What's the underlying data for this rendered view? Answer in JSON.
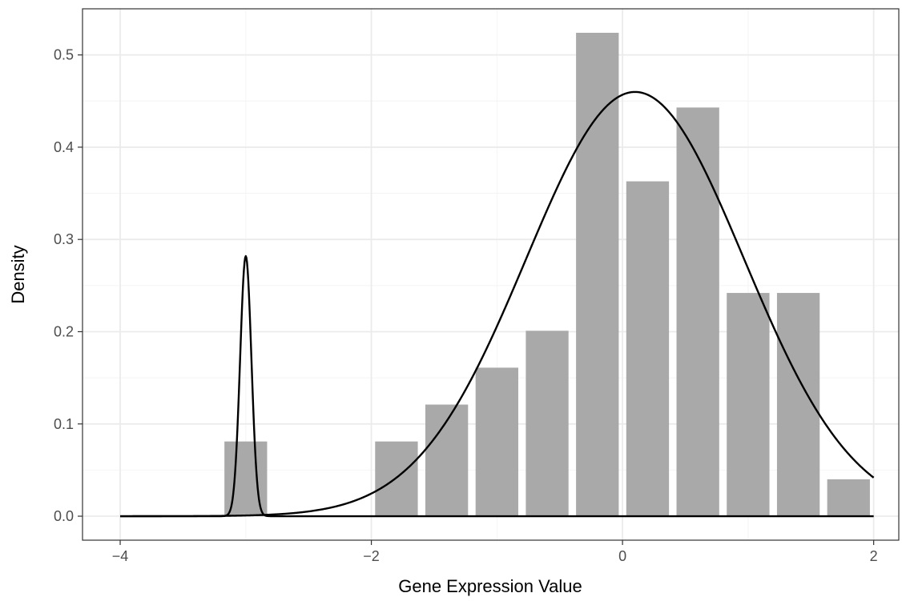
{
  "chart_data": {
    "type": "bar",
    "title": "",
    "xlabel": "Gene Expression Value",
    "ylabel": "Density",
    "xlim": [
      -4.3,
      2.2
    ],
    "ylim": [
      -0.026,
      0.55
    ],
    "grid": true,
    "legend": "none",
    "x_ticks": [
      -4,
      -2,
      0,
      2
    ],
    "x_tick_labels": [
      "−4",
      "−2",
      "0",
      "2"
    ],
    "y_ticks": [
      0.0,
      0.1,
      0.2,
      0.3,
      0.4,
      0.5
    ],
    "y_tick_labels": [
      "0.0",
      "0.1",
      "0.2",
      "0.3",
      "0.4",
      "0.5"
    ],
    "bin_width": 0.4,
    "bar_gap": 0.03,
    "bars": [
      {
        "x": -3.0,
        "value": 0.081
      },
      {
        "x": -1.8,
        "value": 0.081
      },
      {
        "x": -1.4,
        "value": 0.121
      },
      {
        "x": -1.0,
        "value": 0.161
      },
      {
        "x": -0.6,
        "value": 0.201
      },
      {
        "x": -0.2,
        "value": 0.524
      },
      {
        "x": 0.2,
        "value": 0.363
      },
      {
        "x": 0.6,
        "value": 0.443
      },
      {
        "x": 1.0,
        "value": 0.242
      },
      {
        "x": 1.4,
        "value": 0.242
      },
      {
        "x": 1.8,
        "value": 0.04
      }
    ],
    "curves": [
      {
        "name": "",
        "kind": "normal",
        "mean": 0.1,
        "sd": 0.8675,
        "weight": 1.0,
        "x_range": [
          -4,
          2
        ]
      },
      {
        "name": "",
        "kind": "normal",
        "mean": -3.0,
        "sd": 0.045,
        "weight": 0.0318,
        "x_range": [
          -4,
          2
        ]
      }
    ],
    "colors": {
      "bar": "#a9a9a9",
      "curve": "#000000",
      "grid_major": "#ebebeb",
      "grid_minor": "#f4f4f4",
      "panel_border": "#333333"
    }
  }
}
